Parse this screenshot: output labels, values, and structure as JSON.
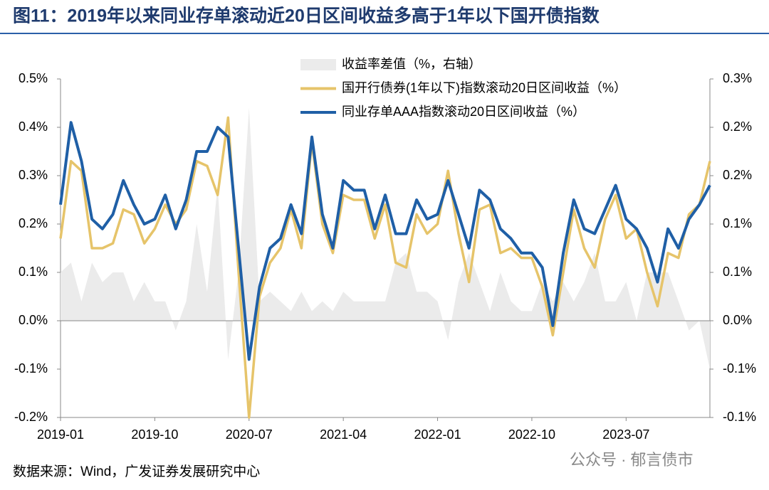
{
  "chart_data": {
    "type": "line",
    "title": "图11：2019年以来同业存单滚动近20日区间收益多高于1年以下国开债指数",
    "source": "数据来源：Wind，广发证券发展研究中心",
    "watermark": "公众号 · 郁言债市",
    "legend": "top",
    "categories": [
      "2019-01",
      null,
      null,
      null,
      null,
      null,
      null,
      null,
      null,
      "2019-10",
      null,
      null,
      null,
      null,
      null,
      null,
      null,
      null,
      "2020-07",
      null,
      null,
      null,
      null,
      null,
      null,
      null,
      null,
      "2021-04",
      null,
      null,
      null,
      null,
      null,
      null,
      null,
      null,
      "2022-01",
      null,
      null,
      null,
      null,
      null,
      null,
      null,
      null,
      "2022-10",
      null,
      null,
      null,
      null,
      null,
      null,
      null,
      null,
      "2023-07",
      null,
      null,
      null,
      null,
      null,
      null,
      null,
      null
    ],
    "ylim": [
      -0.2,
      0.5
    ],
    "yticks": [
      {
        "value": -0.2,
        "label": "-0.2%"
      },
      {
        "value": -0.1,
        "label": "-0.1%"
      },
      {
        "value": 0,
        "label": "0.0%"
      },
      {
        "value": 0.1,
        "label": "0.1%"
      },
      {
        "value": 0.2,
        "label": "0.2%"
      },
      {
        "value": 0.3,
        "label": "0.3%"
      },
      {
        "value": 0.4,
        "label": "0.4%"
      },
      {
        "value": 0.5,
        "label": "0.5%"
      }
    ],
    "y2lim": [
      -0.1,
      0.25
    ],
    "y2ticks": [
      {
        "value": -0.1,
        "label": "-0.1%"
      },
      {
        "value": -0.05,
        "label": "-0.1%"
      },
      {
        "value": 0,
        "label": "0.0%"
      },
      {
        "value": 0.05,
        "label": "0.1%"
      },
      {
        "value": 0.1,
        "label": "0.1%"
      },
      {
        "value": 0.15,
        "label": "0.2%"
      },
      {
        "value": 0.2,
        "label": "0.2%"
      },
      {
        "value": 0.25,
        "label": "0.3%"
      }
    ],
    "series": [
      {
        "name": "收益率差值（%，右轴）",
        "type": "area",
        "axis": "y2",
        "color": "#ebebeb",
        "values": [
          0.05,
          0.06,
          0.02,
          0.06,
          0.04,
          0.05,
          0.05,
          0.02,
          0.04,
          0.02,
          0.02,
          -0.01,
          0.02,
          0.1,
          0.03,
          0.14,
          -0.04,
          0.05,
          0.22,
          0.02,
          0.03,
          0.02,
          0.01,
          0.03,
          0.01,
          0.02,
          0.01,
          0.03,
          0.02,
          0.02,
          0.02,
          0.02,
          0.06,
          0.07,
          0.03,
          0.03,
          0.02,
          -0.02,
          0.04,
          0.07,
          0.04,
          0.01,
          0.05,
          0.02,
          0.01,
          0.01,
          0.04,
          0.02,
          0.04,
          0.02,
          0.04,
          0.07,
          0.02,
          0.02,
          0.04,
          0.0,
          0.05,
          0.05,
          0.05,
          0.02,
          -0.01,
          0.0,
          -0.05
        ]
      },
      {
        "name": "国开行债券(1年以下)指数滚动20日区间收益（%）",
        "color": "#e6c46a",
        "values": [
          0.17,
          0.33,
          0.31,
          0.15,
          0.15,
          0.16,
          0.23,
          0.22,
          0.16,
          0.19,
          0.24,
          0.2,
          0.23,
          0.33,
          0.32,
          0.26,
          0.42,
          0.1,
          -0.2,
          0.05,
          0.12,
          0.15,
          0.23,
          0.15,
          0.37,
          0.2,
          0.14,
          0.26,
          0.25,
          0.25,
          0.17,
          0.24,
          0.12,
          0.11,
          0.22,
          0.18,
          0.2,
          0.31,
          0.18,
          0.08,
          0.23,
          0.24,
          0.14,
          0.15,
          0.13,
          0.13,
          0.07,
          -0.03,
          0.1,
          0.23,
          0.15,
          0.11,
          0.21,
          0.26,
          0.17,
          0.19,
          0.1,
          0.03,
          0.14,
          0.13,
          0.22,
          0.24,
          0.33
        ]
      },
      {
        "name": "同业存单AAA指数滚动20日区间收益（%）",
        "color": "#1f5fa6",
        "values": [
          0.24,
          0.41,
          0.33,
          0.21,
          0.19,
          0.22,
          0.29,
          0.24,
          0.2,
          0.21,
          0.26,
          0.19,
          0.25,
          0.35,
          0.35,
          0.4,
          0.38,
          0.15,
          -0.08,
          0.07,
          0.15,
          0.17,
          0.24,
          0.18,
          0.38,
          0.22,
          0.15,
          0.29,
          0.27,
          0.27,
          0.19,
          0.26,
          0.18,
          0.18,
          0.25,
          0.21,
          0.22,
          0.29,
          0.22,
          0.15,
          0.27,
          0.25,
          0.19,
          0.17,
          0.14,
          0.14,
          0.11,
          -0.01,
          0.14,
          0.25,
          0.19,
          0.18,
          0.23,
          0.28,
          0.21,
          0.19,
          0.15,
          0.08,
          0.19,
          0.15,
          0.21,
          0.24,
          0.28
        ]
      }
    ]
  }
}
